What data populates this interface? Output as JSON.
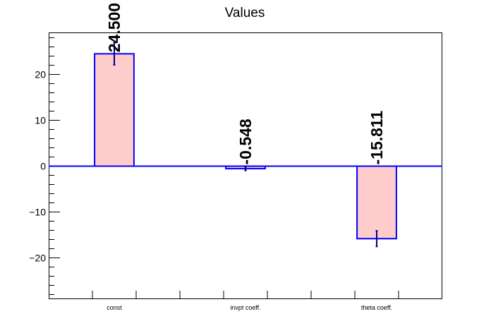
{
  "chart_data": {
    "type": "bar",
    "title": "Values",
    "categories": [
      "const",
      "invpt coeff.",
      "theta coeff."
    ],
    "values": [
      24.5,
      -0.548,
      -15.811
    ],
    "errors": [
      2.4,
      0.4,
      1.7
    ],
    "data_labels": [
      "24.500",
      "-0.548",
      "-15.811"
    ],
    "ylim": [
      -29,
      29
    ],
    "yticks": [
      -20,
      -10,
      0,
      10,
      20
    ],
    "ytick_labels": [
      "−20",
      "−10",
      "0",
      "10",
      "20"
    ],
    "xlabel": "",
    "ylabel": "",
    "grid": false,
    "colors": {
      "bar_fill": "#ffcccc",
      "bar_edge": "#0000ff",
      "error": "#00008b",
      "axis": "#000000"
    }
  }
}
